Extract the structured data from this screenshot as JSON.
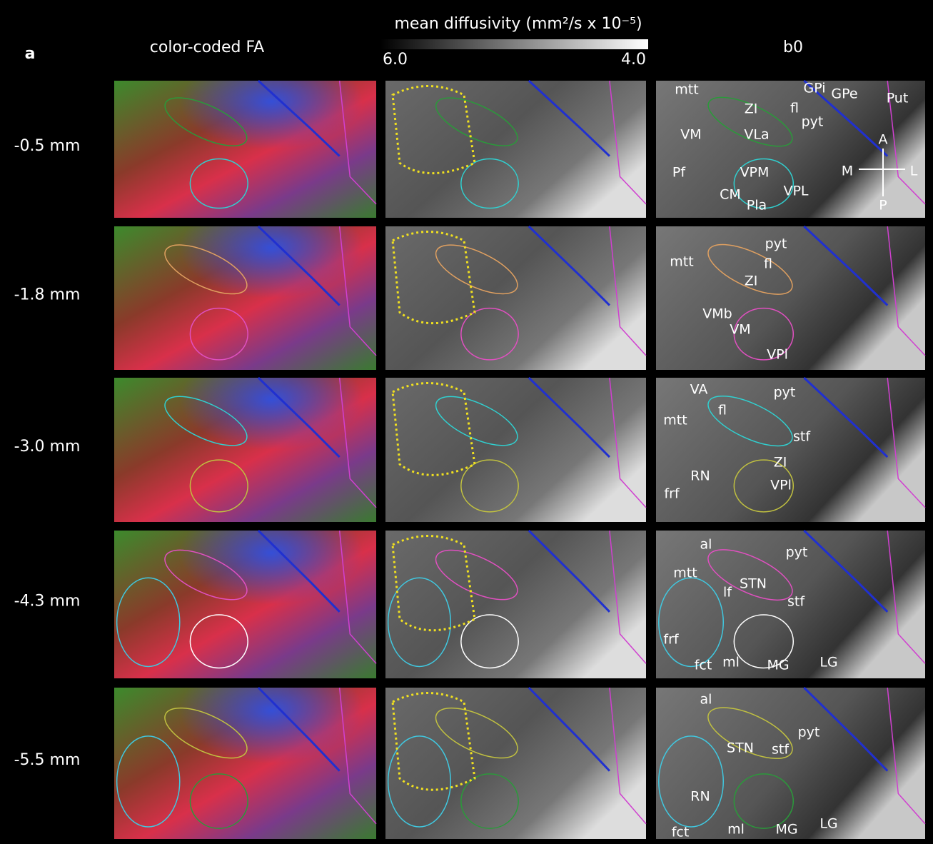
{
  "panel_label": "a",
  "columns": [
    "color-coded FA",
    "mean diffusivity (mm²/s x 10⁻⁵)",
    "b0"
  ],
  "colorbar_ticks": [
    "6.0",
    "4.0"
  ],
  "rows": [
    {
      "label": "-0.5 mm",
      "annotations": [
        "mtt",
        "GPi",
        "GPe",
        "Put",
        "ZI",
        "fl",
        "pyt",
        "VLa",
        "VM",
        "A",
        "Pf",
        "VPM",
        "M",
        "L",
        "CM",
        "VPL",
        "Pla",
        "P"
      ]
    },
    {
      "label": "-1.8 mm",
      "annotations": [
        "pyt",
        "mtt",
        "fl",
        "ZI",
        "VMb",
        "VM",
        "VPl"
      ]
    },
    {
      "label": "-3.0 mm",
      "annotations": [
        "VA",
        "pyt",
        "fl",
        "mtt",
        "stf",
        "ZI",
        "RN",
        "frf",
        "VPl"
      ]
    },
    {
      "label": "-4.3 mm",
      "annotations": [
        "al",
        "pyt",
        "mtt",
        "STN",
        "lf",
        "stf",
        "frf",
        "fct",
        "ml",
        "MG",
        "LG"
      ]
    },
    {
      "label": "-5.5 mm",
      "annotations": [
        "al",
        "pyt",
        "STN",
        "stf",
        "RN",
        "fct",
        "ml",
        "MG",
        "LG"
      ]
    }
  ]
}
